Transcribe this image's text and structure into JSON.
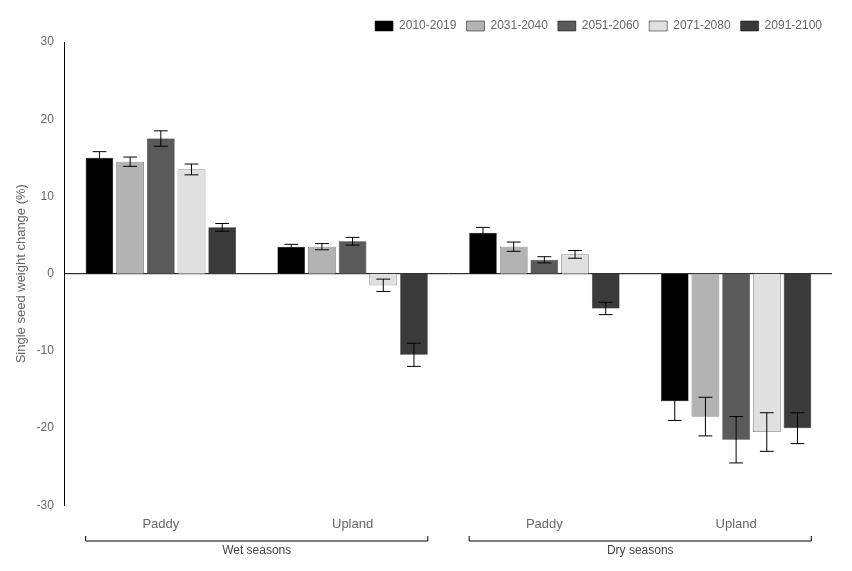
{
  "chart_data": {
    "type": "bar",
    "ylabel": "Single seed weight change (%)",
    "categories": [
      "Paddy",
      "Upland",
      "Paddy",
      "Upland"
    ],
    "annotations": [
      "Wet seasons",
      "Dry seasons"
    ],
    "series": [
      {
        "name": "2010-2019",
        "color": "#000000",
        "values": [
          15.0,
          3.5,
          5.3,
          -16.5
        ],
        "errors": [
          0.8,
          0.3,
          0.7,
          2.5
        ]
      },
      {
        "name": "2031-2040",
        "color": "#b3b3b3",
        "values": [
          14.5,
          3.5,
          3.5,
          -18.5
        ],
        "errors": [
          0.6,
          0.4,
          0.6,
          2.5
        ]
      },
      {
        "name": "2051-2060",
        "color": "#5a5a5a",
        "values": [
          17.5,
          4.2,
          1.8,
          -21.5
        ],
        "errors": [
          1.0,
          0.5,
          0.4,
          3.0
        ]
      },
      {
        "name": "2071-2080",
        "color": "#e0e0e0",
        "values": [
          13.5,
          -1.5,
          2.5,
          -20.5
        ],
        "errors": [
          0.7,
          0.8,
          0.5,
          2.5
        ]
      },
      {
        "name": "2091-2100",
        "color": "#3a3a3a",
        "values": [
          6.0,
          -10.5,
          -4.5,
          -20.0
        ],
        "errors": [
          0.5,
          1.5,
          0.8,
          2.0
        ]
      }
    ],
    "ylim": [
      -30,
      30
    ],
    "yticks": [
      -30,
      -20,
      -10,
      0,
      10,
      20,
      30
    ],
    "grid": false,
    "legend": "upper right"
  }
}
